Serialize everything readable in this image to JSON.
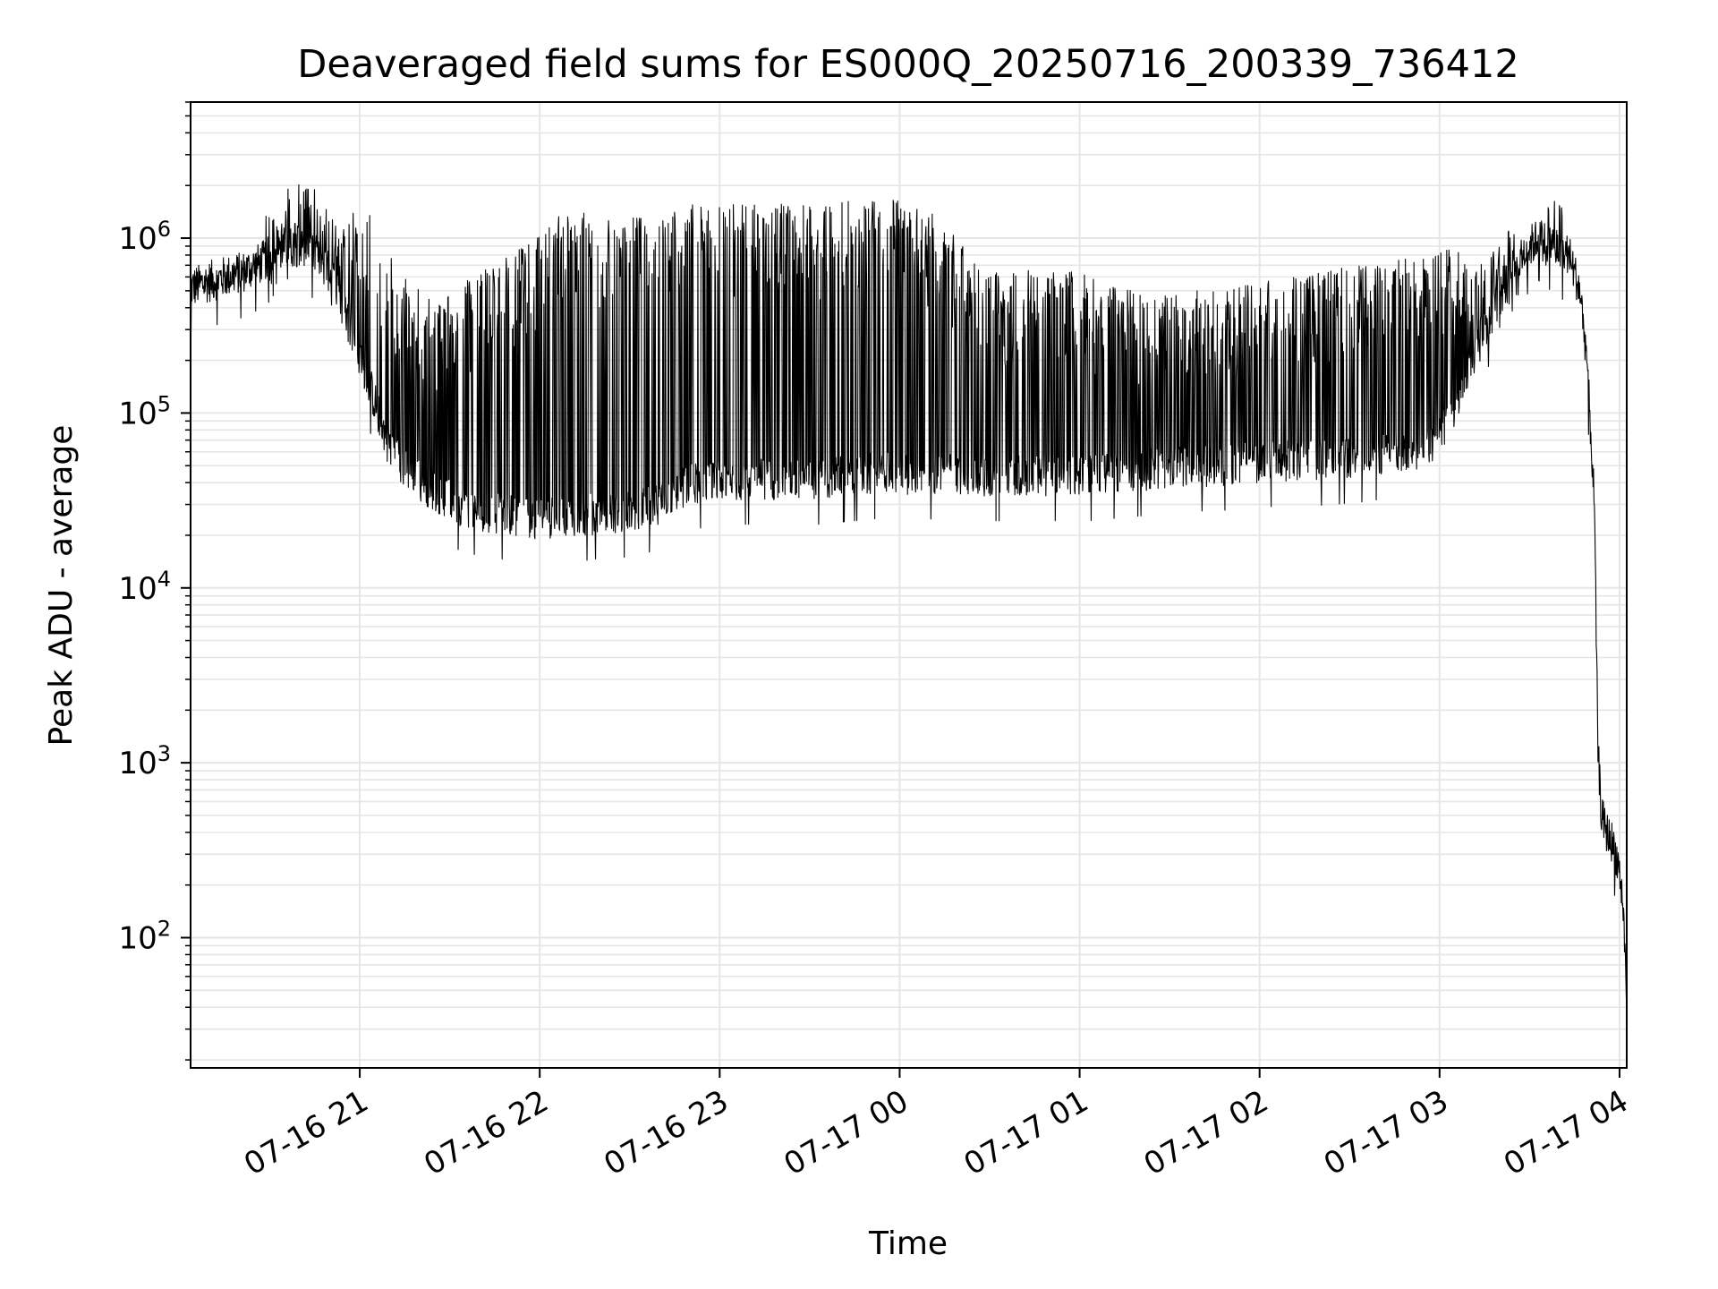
{
  "chart_data": {
    "type": "line",
    "title": "Deaveraged field sums for ES000Q_20250716_200339_736412",
    "xlabel": "Time",
    "ylabel": "Peak ADU - average",
    "x_tick_labels": [
      "07-16 21",
      "07-16 22",
      "07-16 23",
      "07-17 00",
      "07-17 01",
      "07-17 02",
      "07-17 03",
      "07-17 04"
    ],
    "x_ticks_hours": [
      21,
      22,
      23,
      24,
      25,
      26,
      27,
      28
    ],
    "xlim_hours": [
      20.06,
      28.04
    ],
    "y_tick_exponents": [
      2,
      3,
      4,
      5,
      6
    ],
    "y_tick_base": "10",
    "ylim": [
      18,
      6000000
    ],
    "yscale": "log",
    "grid": true,
    "colors": {
      "line": "#000000",
      "grid": "#e6e6e6",
      "axes": "#000000"
    },
    "series": [
      {
        "x_hours": [
          20.06,
          20.15,
          20.25,
          20.35,
          20.45,
          20.55,
          20.65,
          20.75,
          20.85,
          20.95,
          21.05,
          21.15,
          21.25,
          21.35,
          21.45,
          21.55,
          21.65,
          21.75,
          21.85,
          21.95,
          22.05,
          22.15,
          22.25,
          22.35,
          22.45,
          22.55,
          22.65,
          22.75,
          22.85,
          22.95,
          23.05,
          23.15,
          23.25,
          23.35,
          23.45,
          23.55,
          23.65,
          23.75,
          23.85,
          23.95,
          24.05,
          24.15,
          24.25,
          24.35,
          24.45,
          24.55,
          24.65,
          24.75,
          24.85,
          24.95,
          25.05,
          25.15,
          25.25,
          25.35,
          25.45,
          25.55,
          25.65,
          25.75,
          25.85,
          25.95,
          26.05,
          26.15,
          26.25,
          26.35,
          26.45,
          26.55,
          26.65,
          26.75,
          26.85,
          26.95,
          27.05,
          27.15,
          27.25,
          27.35,
          27.45,
          27.55,
          27.65,
          27.72,
          27.78,
          27.82,
          27.86,
          27.88,
          27.9,
          27.92,
          27.94,
          27.96,
          27.98,
          28.0,
          28.02,
          28.04
        ],
        "baseline": [
          520000,
          560000,
          600000,
          640000,
          720000,
          880000,
          900000,
          820000,
          600000,
          300000,
          150000,
          70000,
          48000,
          40000,
          34000,
          30000,
          28000,
          27000,
          26000,
          25000,
          25000,
          26000,
          26000,
          27000,
          27000,
          28000,
          30000,
          35000,
          40000,
          40000,
          42000,
          42000,
          42000,
          42000,
          42000,
          42000,
          43000,
          44000,
          45000,
          46000,
          45000,
          45000,
          45000,
          45000,
          44000,
          44000,
          44000,
          44000,
          44000,
          44000,
          44000,
          45000,
          46000,
          47000,
          48000,
          50000,
          50000,
          50000,
          51000,
          52000,
          53000,
          53000,
          54000,
          54000,
          55000,
          56000,
          58000,
          60000,
          62000,
          66000,
          90000,
          160000,
          300000,
          500000,
          800000,
          1000000,
          880000,
          800000,
          500000,
          200000,
          30000,
          1200,
          500,
          420,
          380,
          350,
          300,
          240,
          150,
          45
        ],
        "spikes": [
          0,
          1.1,
          1.2,
          1.25,
          1.3,
          1.7,
          2.0,
          1.9,
          1.8,
          4,
          8,
          10,
          10,
          10,
          10,
          14,
          18,
          22,
          26,
          30,
          40,
          44,
          44,
          42,
          40,
          38,
          36,
          34,
          32,
          30,
          30,
          30,
          30,
          30,
          30,
          30,
          30,
          30,
          30,
          30,
          28,
          26,
          22,
          16,
          12,
          12,
          12,
          12,
          12,
          12,
          11,
          10,
          9,
          8,
          8,
          8,
          8,
          8,
          8,
          9,
          9,
          9,
          9,
          10,
          10,
          10,
          10,
          10,
          10,
          10,
          8,
          4,
          2,
          1.6,
          1.4,
          1.4,
          1.6,
          1.3,
          1.2,
          1.1,
          1,
          1,
          1,
          1,
          1,
          1,
          1,
          1,
          1,
          1
        ]
      }
    ]
  }
}
